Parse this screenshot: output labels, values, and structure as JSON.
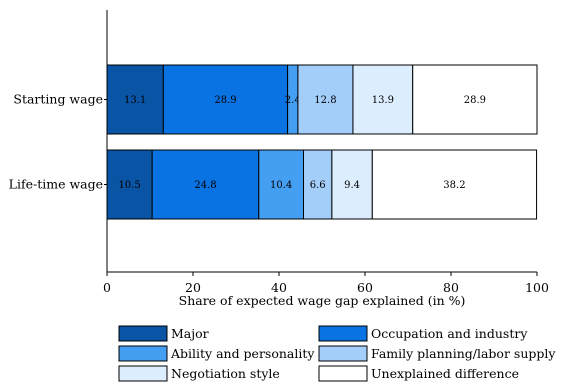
{
  "chart_data": {
    "type": "bar",
    "orientation": "horizontal",
    "stacked": true,
    "categories": [
      "Starting wage",
      "Life-time wage"
    ],
    "series": [
      {
        "name": "Major",
        "values": [
          13.1,
          10.5
        ],
        "color": "#0a54a5"
      },
      {
        "name": "Occupation and industry",
        "values": [
          28.9,
          24.8
        ],
        "color": "#0a73e3"
      },
      {
        "name": "Ability and personality",
        "values": [
          2.4,
          10.4
        ],
        "color": "#449ef2"
      },
      {
        "name": "Family planning/labor supply",
        "values": [
          12.8,
          6.6
        ],
        "color": "#a4cefa"
      },
      {
        "name": "Negotiation style",
        "values": [
          13.9,
          9.4
        ],
        "color": "#dceefe"
      },
      {
        "name": "Unexplained difference",
        "values": [
          28.9,
          38.2
        ],
        "color": "#ffffff"
      }
    ],
    "xlabel": "Share of expected wage gap explained (in %)",
    "ylabel": "",
    "xlim": [
      0,
      100
    ],
    "xticks": [
      0,
      20,
      40,
      60,
      80,
      100
    ],
    "grid": false,
    "legend_position": "bottom"
  }
}
